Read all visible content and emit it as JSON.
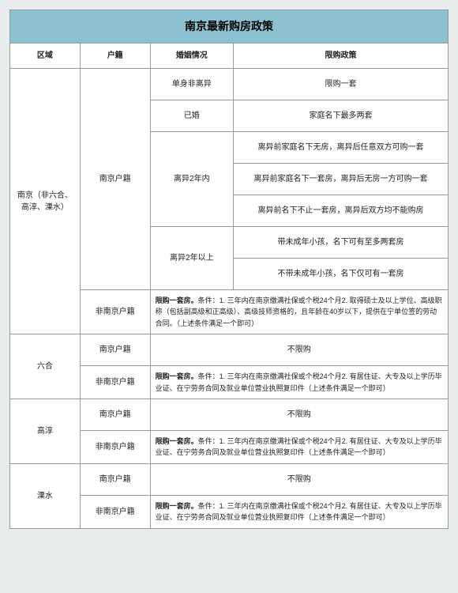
{
  "title": "南京最新购房政策",
  "headers": {
    "region": "区域",
    "huji": "户籍",
    "marital": "婚姻情况",
    "policy": "限购政策"
  },
  "region1": {
    "name": "南京（非六合、高淳、溧水）",
    "huji_local": "南京户籍",
    "huji_nonlocal": "非南京户籍",
    "rows": {
      "single": {
        "marital": "单身非离异",
        "policy": "限购一套"
      },
      "married": {
        "marital": "已婚",
        "policy": "家庭名下最多两套"
      },
      "div2_label": "离异2年内",
      "div2_a": "离异前家庭名下无房，离异后任意双方可购一套",
      "div2_b": "离异前家庭名下一套房，离异后无房一方可购一套",
      "div2_c": "离异前名下不止一套房，离异后双方均不能购房",
      "div2p_label": "离异2年以上",
      "div2p_a": "带未成年小孩，名下可有至多两套房",
      "div2p_b": "不带未成年小孩，名下仅可有一套房"
    },
    "nonlocal_bold": "限购一套房。",
    "nonlocal_rest": "条件：1. 三年内在南京缴满社保或个税24个月2. 取得硕士及以上学位、高级职称（包括副高级和正高级）、高级技师资格的，且年龄在40岁以下，提供在宁单位签的劳动合同。（上述条件满足一个即可）"
  },
  "others": [
    {
      "name": "六合"
    },
    {
      "name": "高淳"
    },
    {
      "name": "溧水"
    }
  ],
  "other_common": {
    "huji_local": "南京户籍",
    "huji_nonlocal": "非南京户籍",
    "local_policy": "不限购",
    "nonlocal_bold": "限购一套房。",
    "nonlocal_rest": "条件：1. 三年内在南京缴满社保或个税24个月2. 有居住证、大专及以上学历毕业证、在宁劳务合同及就业单位营业执照复印件（上述条件满足一个即可）"
  }
}
